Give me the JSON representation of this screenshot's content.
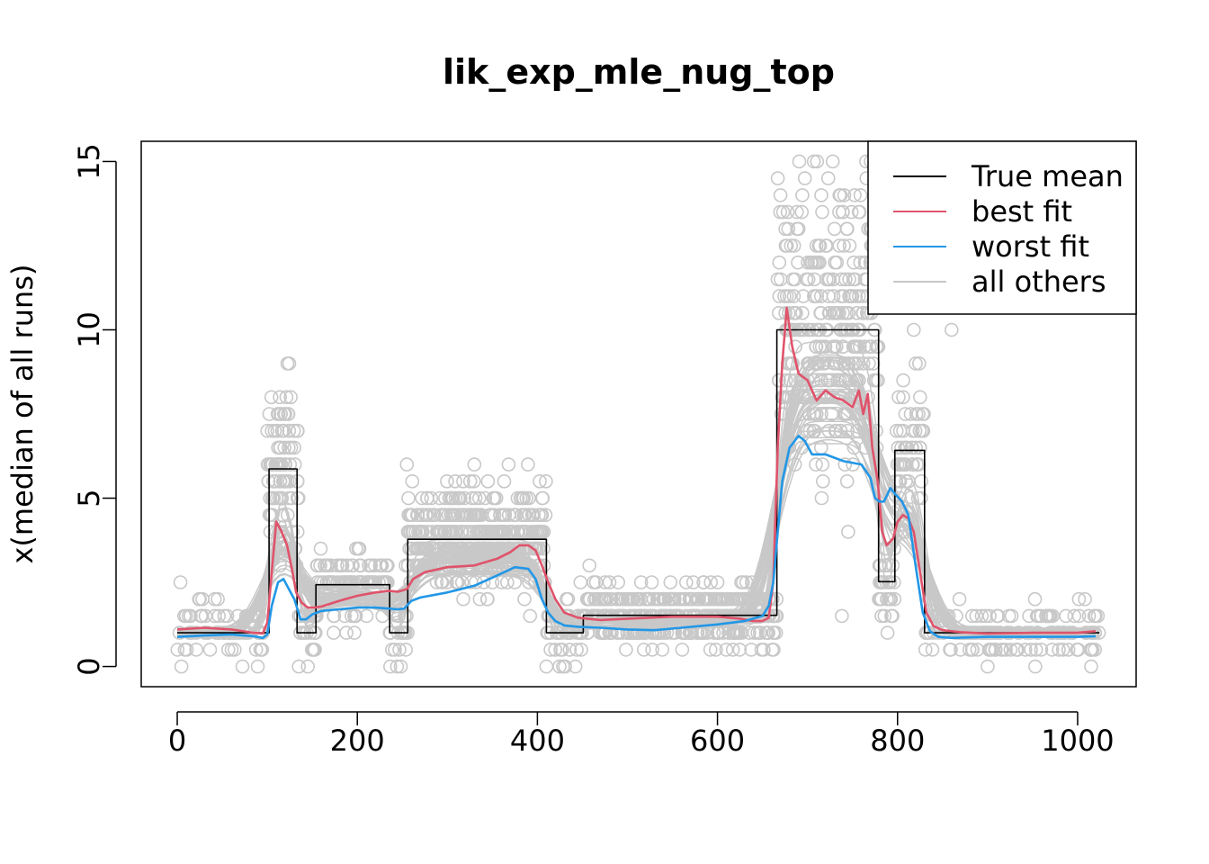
{
  "chart_data": {
    "type": "line",
    "title": "lik_exp_mle_nug_top",
    "xlabel": "",
    "ylabel": "x(median of all runs)",
    "xlim": [
      -40,
      1065
    ],
    "ylim": [
      -0.6,
      15.6
    ],
    "x_ticks": [
      0,
      200,
      400,
      600,
      800,
      1000
    ],
    "x_tick_labels": [
      "0",
      "200",
      "400",
      "600",
      "800",
      "1000"
    ],
    "y_ticks": [
      0,
      5,
      10,
      15
    ],
    "y_tick_labels": [
      "0",
      "5",
      "10",
      "15"
    ],
    "legend": {
      "position": "top-right",
      "entries": [
        {
          "label": "True mean",
          "color": "#000000"
        },
        {
          "label": "best fit",
          "color": "#DF536B"
        },
        {
          "label": "worst fit",
          "color": "#2297E6"
        },
        {
          "label": "all others",
          "color": "#C8C8C8"
        }
      ]
    },
    "series": [
      {
        "name": "True mean",
        "color": "#000000",
        "style": "step",
        "x": [
          0,
          102,
          102,
          133,
          133,
          154,
          154,
          236,
          236,
          256,
          256,
          410,
          410,
          451,
          451,
          666,
          666,
          779,
          779,
          797,
          797,
          830,
          830,
          1024
        ],
        "y": [
          1.0,
          1.0,
          5.87,
          5.87,
          1.0,
          1.0,
          2.43,
          2.43,
          1.0,
          1.0,
          3.78,
          3.78,
          1.0,
          1.0,
          1.52,
          1.52,
          10.0,
          10.0,
          2.52,
          2.52,
          6.42,
          6.42,
          1.0,
          1.0
        ]
      },
      {
        "name": "best fit",
        "color": "#DF536B",
        "x": [
          0,
          30,
          60,
          85,
          95,
          100,
          105,
          110,
          116,
          122,
          128,
          132,
          138,
          145,
          152,
          160,
          180,
          200,
          220,
          235,
          245,
          255,
          262,
          275,
          300,
          330,
          355,
          370,
          380,
          390,
          398,
          405,
          412,
          420,
          430,
          445,
          470,
          500,
          550,
          600,
          625,
          640,
          650,
          657,
          662,
          667,
          672,
          677,
          683,
          690,
          700,
          710,
          720,
          730,
          740,
          750,
          757,
          762,
          767,
          772,
          778,
          783,
          788,
          795,
          800,
          806,
          812,
          818,
          825,
          832,
          840,
          850,
          870,
          900,
          950,
          1000,
          1020
        ],
        "y": [
          1.1,
          1.15,
          1.1,
          1.0,
          0.98,
          1.3,
          2.8,
          4.3,
          4.0,
          3.6,
          2.8,
          2.2,
          1.9,
          1.75,
          1.75,
          1.78,
          1.95,
          2.1,
          2.2,
          2.25,
          2.22,
          2.3,
          2.6,
          2.8,
          2.95,
          3.0,
          3.2,
          3.4,
          3.6,
          3.6,
          3.45,
          3.0,
          2.5,
          2.0,
          1.6,
          1.45,
          1.38,
          1.42,
          1.48,
          1.48,
          1.42,
          1.35,
          1.35,
          1.45,
          2.5,
          6.5,
          9.0,
          10.65,
          9.5,
          8.7,
          8.5,
          7.9,
          8.2,
          8.0,
          7.9,
          7.7,
          8.2,
          7.5,
          8.1,
          6.5,
          5.5,
          4.0,
          3.6,
          3.8,
          4.3,
          4.5,
          4.4,
          4.0,
          2.8,
          1.6,
          1.2,
          1.08,
          1.02,
          0.98,
          1.0,
          1.0,
          1.05
        ]
      },
      {
        "name": "worst fit",
        "color": "#2297E6",
        "x": [
          0,
          30,
          60,
          85,
          95,
          100,
          105,
          112,
          118,
          124,
          130,
          137,
          143,
          150,
          160,
          180,
          200,
          220,
          235,
          245,
          252,
          260,
          270,
          300,
          330,
          355,
          375,
          390,
          398,
          405,
          412,
          420,
          430,
          445,
          470,
          500,
          530,
          560,
          600,
          630,
          650,
          657,
          662,
          667,
          672,
          680,
          690,
          697,
          705,
          720,
          740,
          760,
          770,
          775,
          780,
          785,
          792,
          798,
          805,
          812,
          820,
          828,
          836,
          845,
          860,
          900,
          950,
          1000,
          1020
        ],
        "y": [
          0.88,
          0.92,
          0.95,
          0.9,
          0.85,
          0.95,
          1.8,
          2.5,
          2.6,
          2.3,
          2.0,
          1.4,
          1.4,
          1.55,
          1.65,
          1.7,
          1.75,
          1.75,
          1.72,
          1.7,
          1.72,
          1.95,
          2.05,
          2.2,
          2.4,
          2.7,
          2.95,
          2.9,
          2.6,
          2.0,
          1.6,
          1.35,
          1.22,
          1.18,
          1.15,
          1.1,
          1.08,
          1.15,
          1.25,
          1.35,
          1.5,
          1.8,
          2.5,
          4.0,
          5.5,
          6.5,
          6.85,
          6.7,
          6.3,
          6.3,
          6.1,
          6.0,
          5.6,
          5.0,
          4.9,
          4.9,
          5.3,
          5.1,
          4.9,
          4.5,
          3.0,
          1.6,
          1.05,
          0.88,
          0.85,
          0.88,
          0.88,
          0.88,
          0.9
        ]
      }
    ],
    "others": {
      "name": "all others",
      "color": "#C8C8C8",
      "style": "lines",
      "count": 40
    },
    "points": {
      "color": "#C8C8C8",
      "style": "open-circle",
      "segments": [
        {
          "x0": 0,
          "x1": 100,
          "n": 70,
          "mean": 1.0,
          "sd": 0.5
        },
        {
          "x0": 100,
          "x1": 135,
          "n": 100,
          "mean": 5.8,
          "sd": 1.3
        },
        {
          "x0": 135,
          "x1": 155,
          "n": 25,
          "mean": 1.0,
          "sd": 0.5
        },
        {
          "x0": 155,
          "x1": 236,
          "n": 130,
          "mean": 2.5,
          "sd": 0.55
        },
        {
          "x0": 236,
          "x1": 256,
          "n": 25,
          "mean": 1.2,
          "sd": 0.6
        },
        {
          "x0": 256,
          "x1": 410,
          "n": 380,
          "mean": 3.8,
          "sd": 0.75
        },
        {
          "x0": 410,
          "x1": 451,
          "n": 50,
          "mean": 1.0,
          "sd": 0.5
        },
        {
          "x0": 451,
          "x1": 666,
          "n": 380,
          "mean": 1.5,
          "sd": 0.45
        },
        {
          "x0": 666,
          "x1": 779,
          "n": 330,
          "mean": 9.8,
          "sd": 1.9
        },
        {
          "x0": 779,
          "x1": 797,
          "n": 35,
          "mean": 2.6,
          "sd": 0.7
        },
        {
          "x0": 797,
          "x1": 830,
          "n": 60,
          "mean": 6.5,
          "sd": 1.2
        },
        {
          "x0": 830,
          "x1": 1024,
          "n": 150,
          "mean": 1.0,
          "sd": 0.35
        }
      ],
      "extras": [
        [
          707,
          15
        ],
        [
          728,
          15
        ],
        [
          723,
          14.5
        ],
        [
          697,
          14.5
        ],
        [
          667,
          14.5
        ],
        [
          670,
          14.0
        ],
        [
          678,
          13.5
        ],
        [
          757,
          13.5
        ],
        [
          685,
          12.5
        ],
        [
          730,
          13.0
        ],
        [
          860,
          10.0
        ],
        [
          818,
          10.0
        ],
        [
          824,
          9.0
        ],
        [
          900,
          0.0
        ],
        [
          1015,
          0.0
        ],
        [
          1020,
          1.5
        ],
        [
          870,
          0.5
        ],
        [
          953,
          0.0
        ],
        [
          600,
          2.5
        ],
        [
          480,
          2.5
        ],
        [
          330,
          6.0
        ],
        [
          255,
          6.0
        ],
        [
          368,
          6.0
        ],
        [
          145,
          0.0
        ],
        [
          135,
          0.0
        ],
        [
          410,
          0.0
        ],
        [
          25,
          2.0
        ],
        [
          45,
          2.0
        ]
      ]
    }
  }
}
